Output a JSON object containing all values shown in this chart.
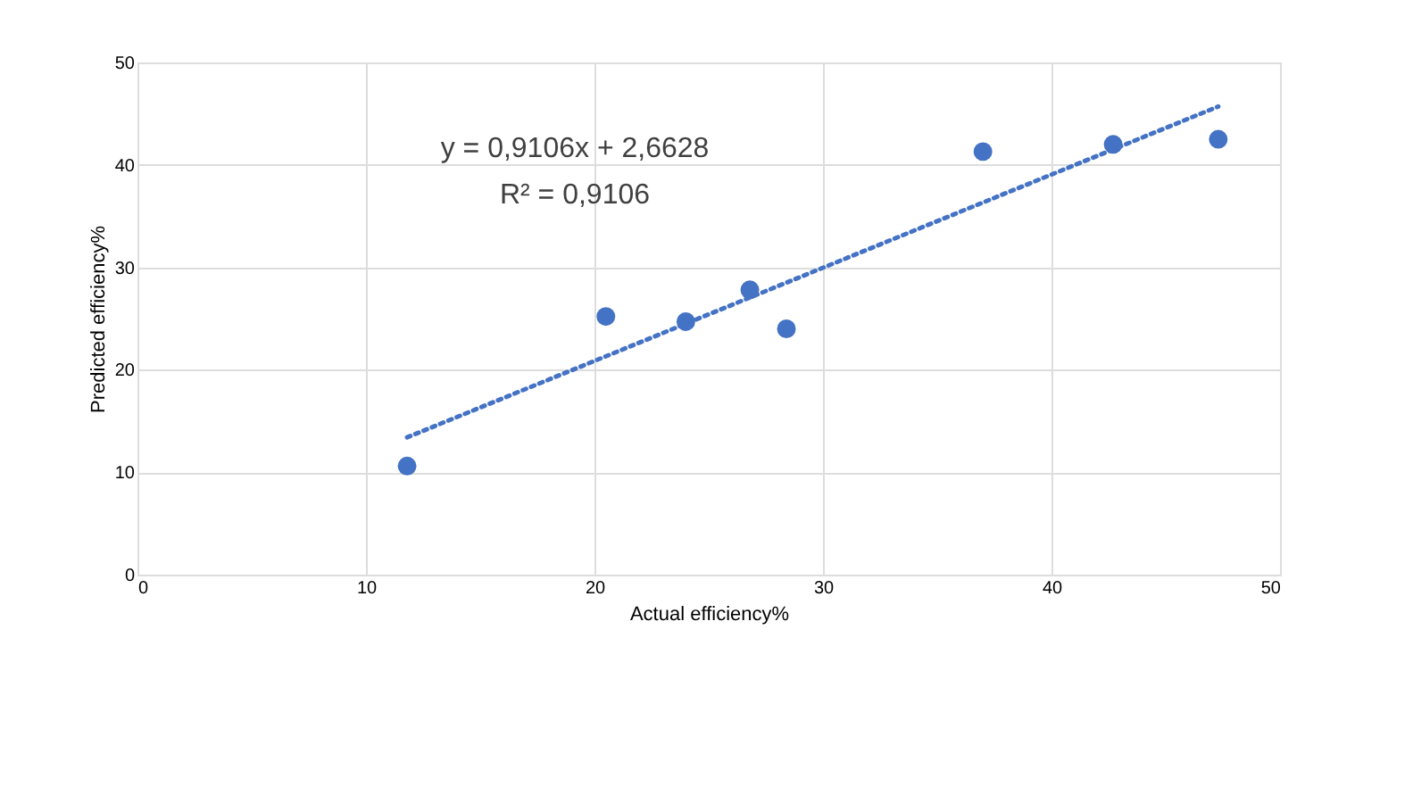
{
  "chart_data": {
    "type": "scatter",
    "xlabel": "Actual efficiency%",
    "ylabel": "Predicted efficiency%",
    "xlim": [
      0,
      50
    ],
    "xticks": [
      0,
      10,
      20,
      30,
      40,
      50
    ],
    "ylim": [
      0,
      50
    ],
    "yticks": [
      0,
      10,
      20,
      30,
      40,
      50
    ],
    "grid": true,
    "series": [
      {
        "color": "#4472c4",
        "marker": "circle",
        "x": [
          11.8,
          20.5,
          24,
          26.8,
          28.4,
          37,
          42.7,
          47.3
        ],
        "values": [
          10.6,
          25.2,
          24.7,
          27.8,
          24.0,
          41.3,
          42.0,
          42.5
        ]
      },
      {
        "type": "line",
        "color": "#4472c4",
        "line_style": "dotted",
        "x": [
          11.8,
          47.3
        ],
        "values": [
          13.4,
          45.7
        ]
      }
    ],
    "annotations": [
      "y = 0,9106x + 2,6628",
      "R² = 0,9106"
    ]
  }
}
